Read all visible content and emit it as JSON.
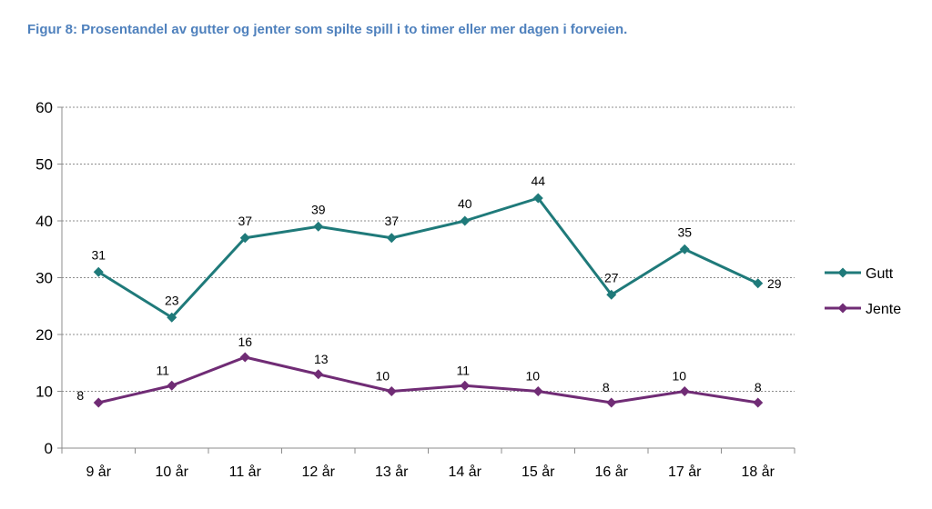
{
  "figure_title": "Figur 8: Prosentandel av gutter og jenter som spilte spill i to timer eller mer dagen i forveien.",
  "chart_data": {
    "type": "line",
    "categories": [
      "9 år",
      "10 år",
      "11 år",
      "12 år",
      "13 år",
      "14 år",
      "15 år",
      "16 år",
      "17 år",
      "18 år"
    ],
    "series": [
      {
        "name": "Gutt",
        "values": [
          31,
          23,
          37,
          39,
          37,
          40,
          44,
          27,
          35,
          29
        ],
        "color": "#1f7a7a"
      },
      {
        "name": "Jente",
        "values": [
          8,
          11,
          16,
          13,
          10,
          11,
          10,
          8,
          10,
          8
        ],
        "color": "#702c75"
      }
    ],
    "ylim": [
      0,
      60
    ],
    "yticks": [
      0,
      10,
      20,
      30,
      40,
      50,
      60
    ],
    "grid": true,
    "legend": "right",
    "marker": "diamond"
  }
}
